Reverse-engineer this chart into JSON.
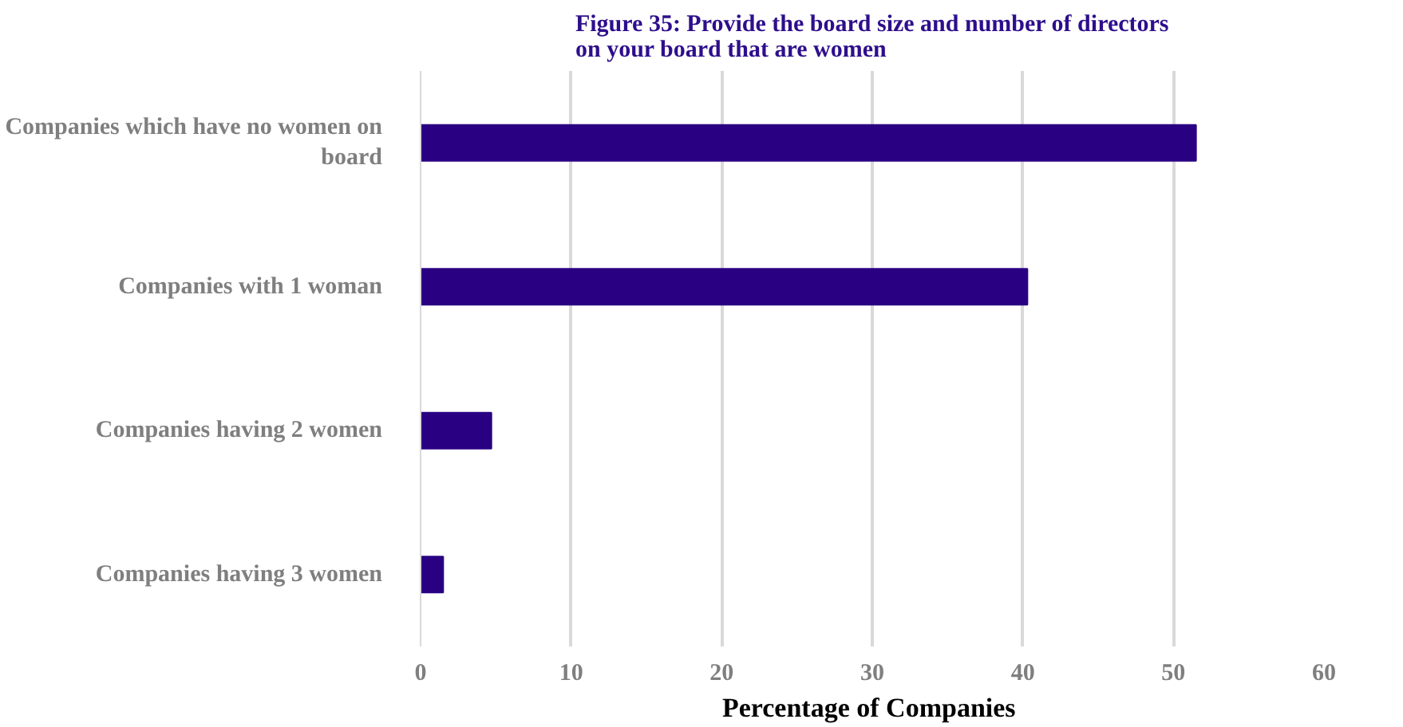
{
  "chart_data": {
    "type": "bar",
    "orientation": "horizontal",
    "title": "Figure 35: Provide the board size and number of directors\non your board that are women",
    "categories": [
      "Companies which have no women on board",
      "Companies with 1 woman",
      "Companies having 2 women",
      "Companies having 3 women"
    ],
    "values": [
      51.5,
      40.3,
      4.7,
      1.5
    ],
    "color": "#2a0082",
    "xlabel": "Percentage of  Companies",
    "xlim": [
      0,
      60
    ],
    "xticks": [
      0,
      10,
      20,
      30,
      40,
      50,
      60
    ],
    "grid": "x"
  }
}
